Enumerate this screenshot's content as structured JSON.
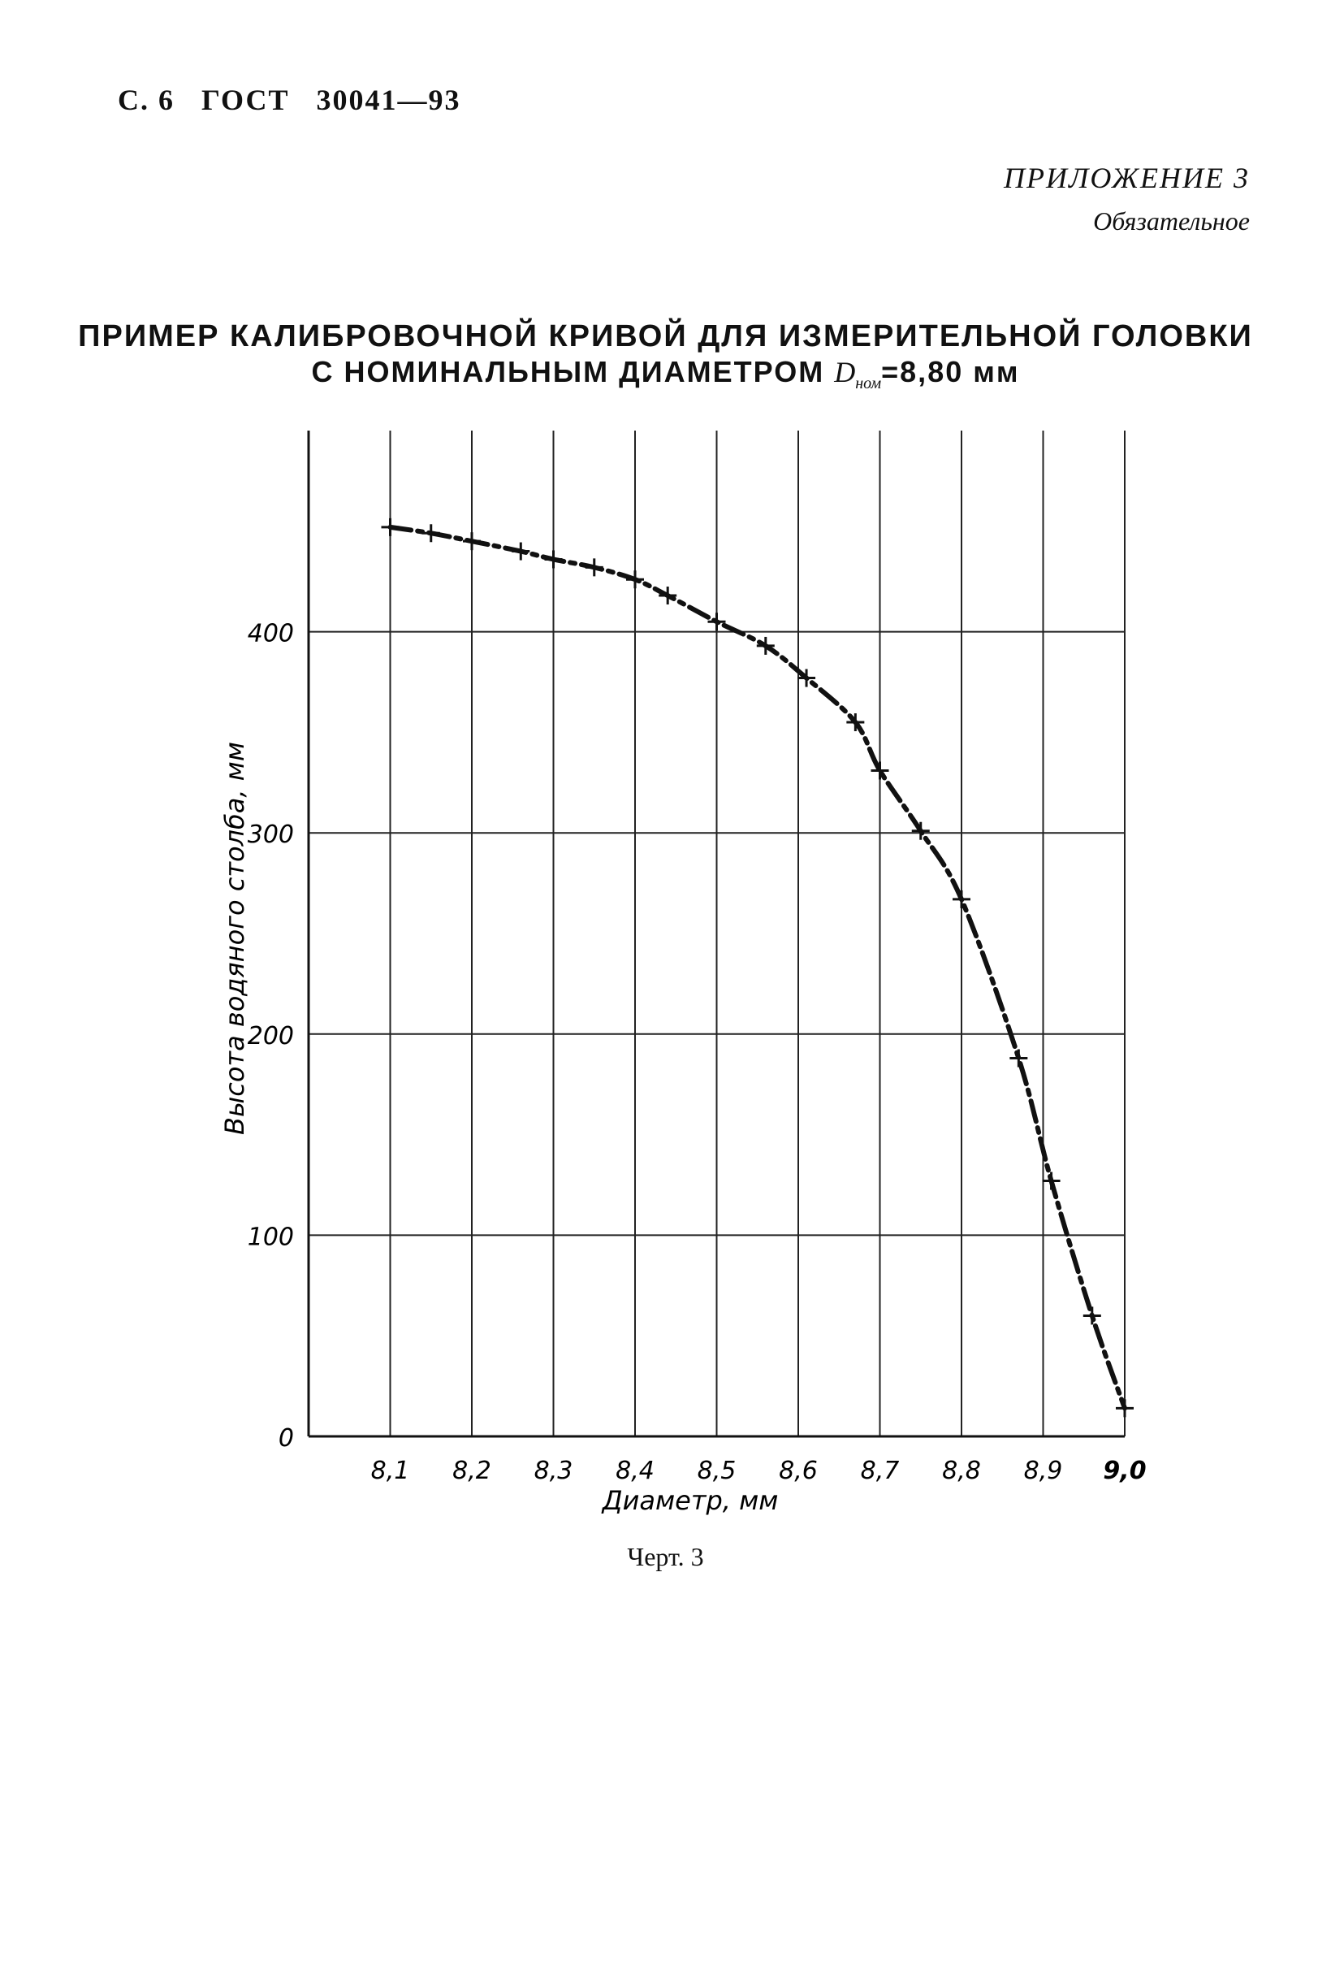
{
  "header": {
    "page": "С. 6",
    "standard": "ГОСТ",
    "number": "30041—93"
  },
  "appendix": {
    "label": "ПРИЛОЖЕНИЕ 3",
    "status": "Обязательное"
  },
  "title": {
    "line1": "ПРИМЕР КАЛИБРОВОЧНОЙ КРИВОЙ ДЛЯ ИЗМЕРИТЕЛЬНОЙ ГОЛОВКИ",
    "line2_prefix": "С НОМИНАЛЬНЫМ ДИАМЕТРОМ",
    "symbol": "D",
    "symbol_sub": "ном",
    "line2_suffix": "=8,80 мм"
  },
  "caption": "Черт. 3",
  "chart_data": {
    "type": "line",
    "xlabel": "Диаметр, мм",
    "ylabel": "Высота водяного столба, мм",
    "xlim": [
      8.0,
      9.0
    ],
    "ylim": [
      0,
      500
    ],
    "xticks": [
      8.1,
      8.2,
      8.3,
      8.4,
      8.5,
      8.6,
      8.7,
      8.8,
      8.9,
      9.0
    ],
    "xtick_labels": [
      "8,1",
      "8,2",
      "8,3",
      "8,4",
      "8,5",
      "8,6",
      "8,7",
      "8,8",
      "8,9",
      "9,0"
    ],
    "yticks": [
      0,
      100,
      200,
      300,
      400
    ],
    "ytick_labels": [
      "0",
      "100",
      "200",
      "300",
      "400"
    ],
    "grid": true,
    "series": [
      {
        "marker": "+",
        "line_style": "dashed",
        "color": "#111111",
        "x": [
          8.1,
          8.15,
          8.2,
          8.26,
          8.3,
          8.35,
          8.4,
          8.44,
          8.5,
          8.56,
          8.61,
          8.67,
          8.7,
          8.75,
          8.8,
          8.87,
          8.91,
          8.96,
          9.0
        ],
        "y": [
          452,
          449,
          445,
          440,
          436,
          432,
          426,
          418,
          405,
          393,
          377,
          355,
          331,
          301,
          267,
          188,
          127,
          60,
          14
        ]
      }
    ]
  }
}
